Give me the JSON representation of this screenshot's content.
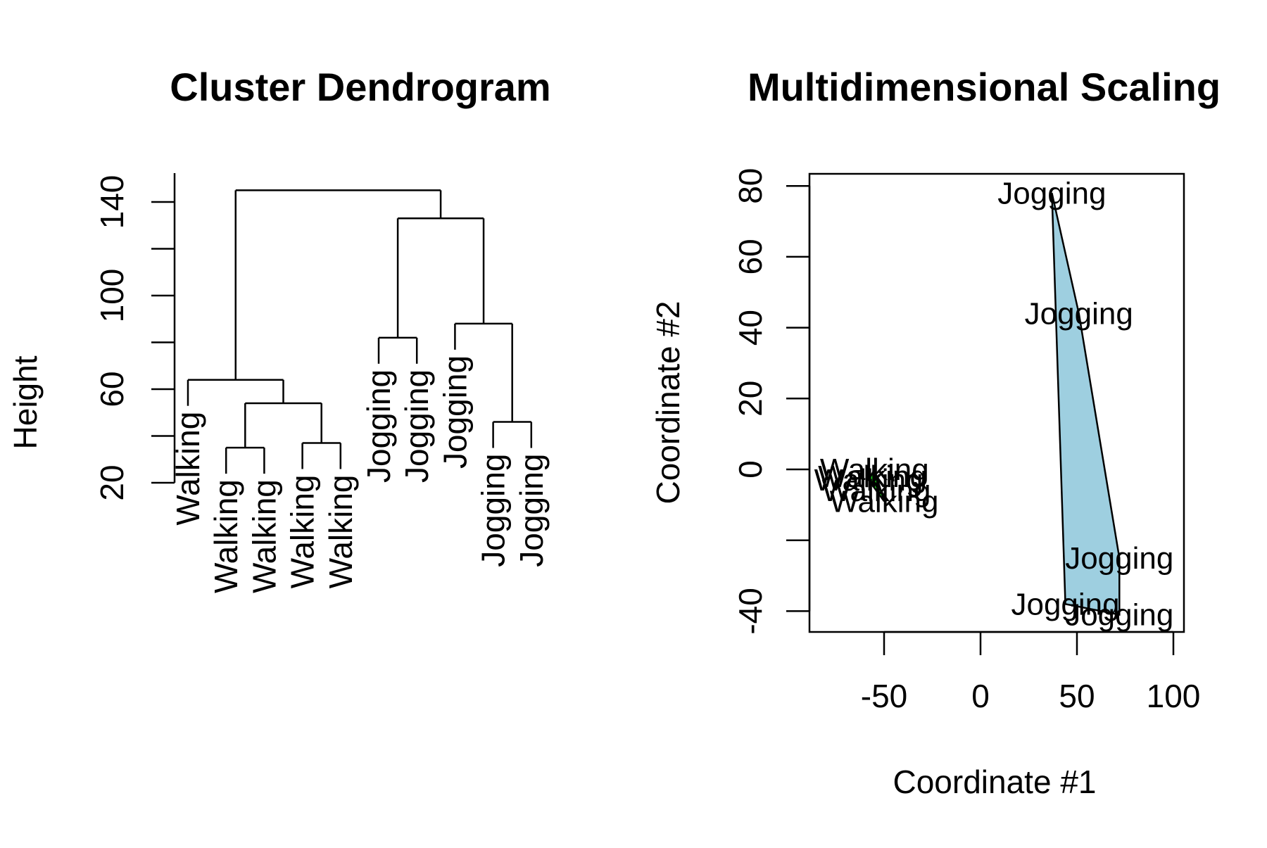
{
  "chart_data": [
    {
      "type": "dendrogram",
      "title": "Cluster Dendrogram",
      "xlabel": "",
      "ylabel": "Height",
      "ylim": [
        20,
        150
      ],
      "y_ticks": [
        20,
        60,
        100,
        140
      ],
      "leaves": [
        "Walking",
        "Walking",
        "Walking",
        "Walking",
        "Walking",
        "Jogging",
        "Jogging",
        "Jogging",
        "Jogging",
        "Jogging"
      ],
      "merges": [
        {
          "left": "L2",
          "right": "L3",
          "height": 35
        },
        {
          "left": "L4",
          "right": "L5",
          "height": 37
        },
        {
          "left": "M1",
          "right": "M2",
          "height": 54
        },
        {
          "left": "L1",
          "right": "M3",
          "height": 64
        },
        {
          "left": "L6",
          "right": "L7",
          "height": 82
        },
        {
          "left": "L9",
          "right": "L10",
          "height": 46
        },
        {
          "left": "L8",
          "right": "M6",
          "height": 88
        },
        {
          "left": "M5",
          "right": "M7",
          "height": 133
        },
        {
          "left": "M4",
          "right": "M8",
          "height": 145
        }
      ]
    },
    {
      "type": "scatter",
      "title": "Multidimensional Scaling",
      "xlabel": "Coordinate #1",
      "ylabel": "Coordinate #2",
      "xlim": [
        -87,
        107
      ],
      "ylim": [
        -46,
        84
      ],
      "x_ticks": [
        -50,
        0,
        50,
        100
      ],
      "y_ticks": [
        -40,
        -20,
        0,
        20,
        40,
        60,
        80
      ],
      "points": [
        {
          "label": "Walking",
          "x": -55,
          "y": 0
        },
        {
          "label": "Walking",
          "x": -56,
          "y": -2
        },
        {
          "label": "Walking",
          "x": -58,
          "y": -3
        },
        {
          "label": "Walking",
          "x": -54,
          "y": -6
        },
        {
          "label": "Walking",
          "x": -50,
          "y": -9
        },
        {
          "label": "Jogging",
          "x": 37,
          "y": 78
        },
        {
          "label": "Jogging",
          "x": 51,
          "y": 44
        },
        {
          "label": "Jogging",
          "x": 72,
          "y": -25
        },
        {
          "label": "Jogging",
          "x": 44,
          "y": -38
        },
        {
          "label": "Jogging",
          "x": 72,
          "y": -41
        }
      ],
      "hulls": [
        {
          "group": "Jogging",
          "fill": "#9ecfe0"
        },
        {
          "group": "Walking",
          "fill": "#1fdd1f"
        }
      ],
      "box": true
    }
  ]
}
